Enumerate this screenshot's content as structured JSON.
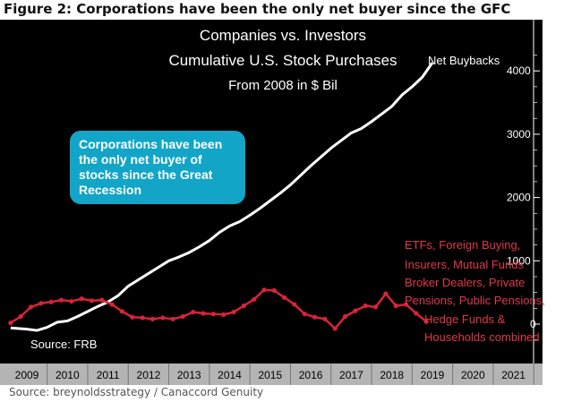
{
  "figure_title": "Figure 2: Corporations have been the only net buyer since the GFC",
  "source_note": "Source: breynoldsstrategy / Canaccord Genuity",
  "callout_text": "Corporations have been the only net buyer of stocks since the Great Recession",
  "colors": {
    "panel": "#000000",
    "buybacks": "#ffffff",
    "investors": "#d8233a",
    "callout": "#12a5c8",
    "xbar": "#b4b4b4"
  },
  "chart_data": {
    "type": "line",
    "title": [
      "Companies vs. Investors",
      "Cumulative U.S. Stock Purchases",
      "From 2008 in $ Bil"
    ],
    "ylim": [
      -300,
      4500
    ],
    "y_ticks": [
      0,
      1000,
      2000,
      3000,
      4000
    ],
    "xlim": [
      2008.6,
      2021.8
    ],
    "x_ticks": [
      "2009",
      "2010",
      "2011",
      "2012",
      "2013",
      "2014",
      "2015",
      "2016",
      "2017",
      "2018",
      "2019",
      "2020",
      "2021"
    ],
    "grid": false,
    "source_label": "Source: FRB",
    "series": [
      {
        "name": "Net Buybacks",
        "x": [
          2008.6,
          2009.0,
          2009.25,
          2009.5,
          2009.75,
          2010.0,
          2010.25,
          2010.5,
          2010.75,
          2011.0,
          2011.25,
          2011.5,
          2011.75,
          2012.0,
          2012.25,
          2012.5,
          2012.75,
          2013.0,
          2013.25,
          2013.5,
          2013.75,
          2014.0,
          2014.25,
          2014.5,
          2014.75,
          2015.0,
          2015.25,
          2015.5,
          2015.75,
          2016.0,
          2016.25,
          2016.5,
          2016.75,
          2017.0,
          2017.25,
          2017.5,
          2017.75,
          2018.0,
          2018.25,
          2018.5,
          2018.75,
          2019.0
        ],
        "values": [
          -60,
          -80,
          -100,
          -50,
          30,
          50,
          120,
          200,
          280,
          350,
          450,
          600,
          700,
          800,
          900,
          1000,
          1060,
          1130,
          1220,
          1320,
          1450,
          1550,
          1620,
          1720,
          1830,
          1950,
          2070,
          2200,
          2350,
          2500,
          2640,
          2780,
          2900,
          3020,
          3090,
          3200,
          3320,
          3440,
          3620,
          3750,
          3900,
          4130
        ]
      },
      {
        "name": "ETFs, Foreign Buying, Insurers, Mutual Funds Broker Dealers, Private Pensions, Public Pensions, Hedge Funds & Households combined",
        "x": [
          2008.6,
          2008.85,
          2009.1,
          2009.35,
          2009.6,
          2009.85,
          2010.1,
          2010.35,
          2010.6,
          2010.85,
          2011.1,
          2011.35,
          2011.6,
          2011.85,
          2012.1,
          2012.35,
          2012.6,
          2012.85,
          2013.1,
          2013.35,
          2013.6,
          2013.85,
          2014.1,
          2014.35,
          2014.6,
          2014.85,
          2015.1,
          2015.35,
          2015.6,
          2015.85,
          2016.1,
          2016.35,
          2016.6,
          2016.85,
          2017.1,
          2017.35,
          2017.6,
          2017.85,
          2018.1,
          2018.35,
          2018.6,
          2018.85
        ],
        "values": [
          20,
          120,
          270,
          330,
          350,
          380,
          360,
          400,
          370,
          380,
          310,
          200,
          110,
          100,
          80,
          100,
          80,
          120,
          190,
          170,
          160,
          150,
          190,
          290,
          390,
          540,
          530,
          420,
          310,
          160,
          110,
          80,
          -70,
          120,
          210,
          290,
          270,
          480,
          290,
          310,
          170,
          40
        ]
      }
    ]
  }
}
